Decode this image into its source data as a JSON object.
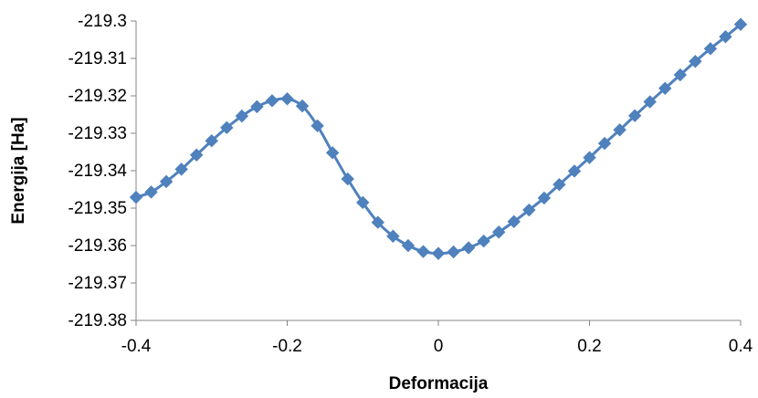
{
  "chart_data": {
    "type": "line",
    "title": "",
    "xlabel": "Deformacija",
    "ylabel": "Energija [Ha]",
    "xlim": [
      -0.4,
      0.4
    ],
    "ylim": [
      -219.38,
      -219.3
    ],
    "x_ticks": [
      "-0.4",
      "-0.2",
      "0",
      "0.2",
      "0.4"
    ],
    "x_tick_values": [
      -0.4,
      -0.2,
      0,
      0.2,
      0.4
    ],
    "y_ticks": [
      "-219.3",
      "-219.31",
      "-219.32",
      "-219.33",
      "-219.34",
      "-219.35",
      "-219.36",
      "-219.37",
      "-219.38"
    ],
    "y_tick_values": [
      -219.3,
      -219.31,
      -219.32,
      -219.33,
      -219.34,
      -219.35,
      -219.36,
      -219.37,
      -219.38
    ],
    "grid": false,
    "legend": "none",
    "marker": "diamond",
    "series": [
      {
        "color": "#4f81bd",
        "points": [
          [
            -0.4,
            -219.3471
          ],
          [
            -0.38,
            -219.3457
          ],
          [
            -0.36,
            -219.3429
          ],
          [
            -0.34,
            -219.3396
          ],
          [
            -0.32,
            -219.3358
          ],
          [
            -0.3,
            -219.332
          ],
          [
            -0.28,
            -219.3285
          ],
          [
            -0.26,
            -219.3254
          ],
          [
            -0.24,
            -219.3229
          ],
          [
            -0.22,
            -219.3213
          ],
          [
            -0.2,
            -219.3208
          ],
          [
            -0.18,
            -219.3227
          ],
          [
            -0.16,
            -219.328
          ],
          [
            -0.14,
            -219.3352
          ],
          [
            -0.12,
            -219.3422
          ],
          [
            -0.1,
            -219.3485
          ],
          [
            -0.08,
            -219.3538
          ],
          [
            -0.06,
            -219.3575
          ],
          [
            -0.04,
            -219.36
          ],
          [
            -0.02,
            -219.3616
          ],
          [
            0.0,
            -219.3621
          ],
          [
            0.02,
            -219.3617
          ],
          [
            0.04,
            -219.3606
          ],
          [
            0.06,
            -219.3588
          ],
          [
            0.08,
            -219.3564
          ],
          [
            0.1,
            -219.3536
          ],
          [
            0.12,
            -219.3505
          ],
          [
            0.14,
            -219.3473
          ],
          [
            0.16,
            -219.3437
          ],
          [
            0.18,
            -219.3401
          ],
          [
            0.2,
            -219.3365
          ],
          [
            0.22,
            -219.3327
          ],
          [
            0.24,
            -219.3291
          ],
          [
            0.26,
            -219.3253
          ],
          [
            0.28,
            -219.3216
          ],
          [
            0.3,
            -219.318
          ],
          [
            0.32,
            -219.3144
          ],
          [
            0.34,
            -219.3108
          ],
          [
            0.36,
            -219.3074
          ],
          [
            0.38,
            -219.3042
          ],
          [
            0.4,
            -219.3009
          ]
        ]
      }
    ]
  }
}
